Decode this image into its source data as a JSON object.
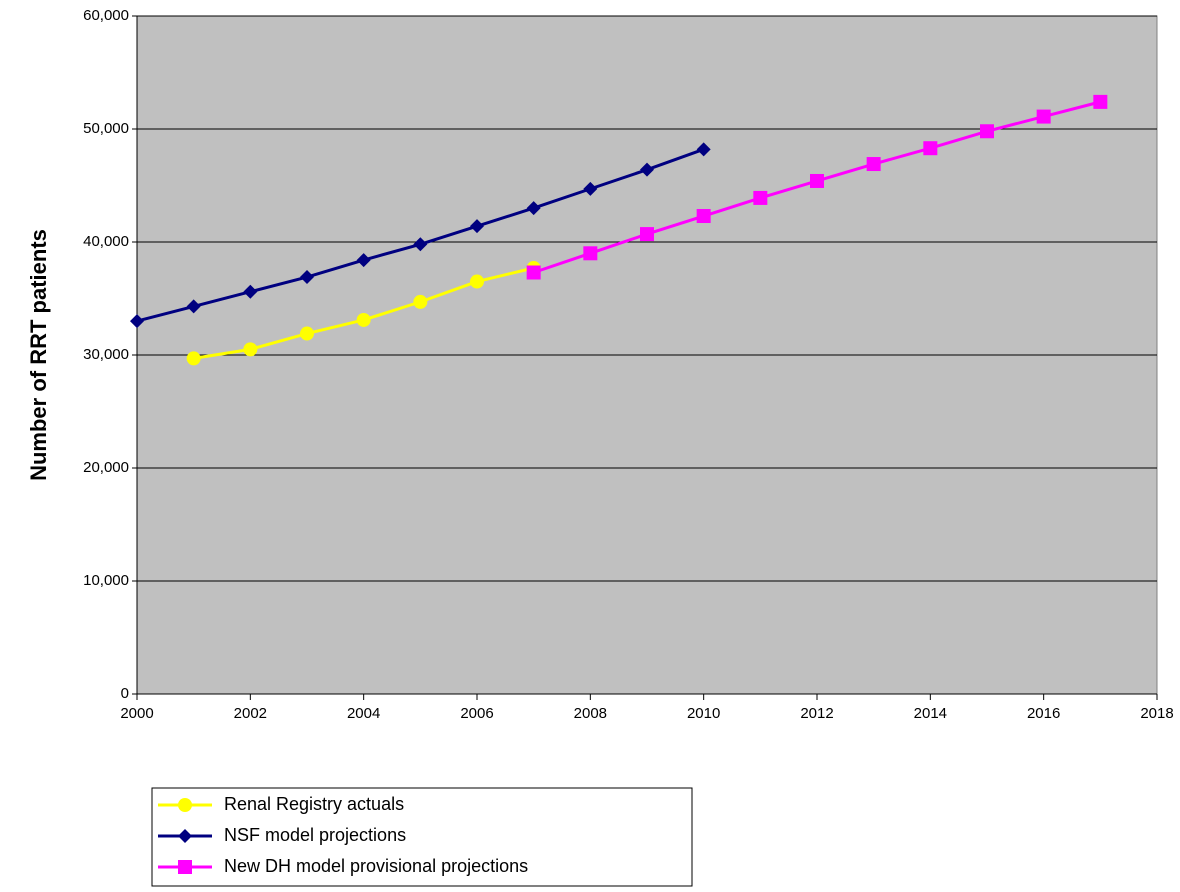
{
  "chart_data": {
    "type": "line",
    "y_label": "Number of RRT patients",
    "x": [
      2000,
      2001,
      2002,
      2003,
      2004,
      2005,
      2006,
      2007,
      2008,
      2009,
      2010,
      2011,
      2012,
      2013,
      2014,
      2015,
      2016,
      2017
    ],
    "series": [
      {
        "name": "Renal Registry actuals",
        "color": "#ffff00",
        "marker": "circle",
        "values": [
          null,
          29700,
          30500,
          31900,
          33100,
          34700,
          36500,
          37700,
          null,
          null,
          null,
          null,
          null,
          null,
          null,
          null,
          null,
          null
        ]
      },
      {
        "name": "NSF model projections",
        "color": "#000080",
        "marker": "diamond",
        "values": [
          33000,
          34300,
          35600,
          36900,
          38400,
          39800,
          41400,
          43000,
          44700,
          46400,
          48200,
          null,
          null,
          null,
          null,
          null,
          null,
          null
        ]
      },
      {
        "name": "New DH model provisional projections",
        "color": "#ff00ff",
        "marker": "square",
        "values": [
          null,
          null,
          null,
          null,
          null,
          null,
          null,
          37300,
          39000,
          40700,
          42300,
          43900,
          45400,
          46900,
          48300,
          49800,
          51100,
          52400
        ]
      }
    ],
    "xlim": [
      2000,
      2018
    ],
    "xticks": [
      2000,
      2002,
      2004,
      2006,
      2008,
      2010,
      2012,
      2014,
      2016,
      2018
    ],
    "ylim": [
      0,
      60000
    ],
    "yticks": [
      0,
      {
        "value": 10000,
        "label": "10,000"
      },
      {
        "value": 20000,
        "label": "20,000"
      },
      {
        "value": 30000,
        "label": "30,000"
      },
      {
        "value": 40000,
        "label": "40,000"
      },
      {
        "value": 50000,
        "label": "50,000"
      },
      {
        "value": 60000,
        "label": "60,000"
      }
    ],
    "grid": true,
    "plot_background": "#c0c0c0",
    "legend": "bottom-left"
  }
}
